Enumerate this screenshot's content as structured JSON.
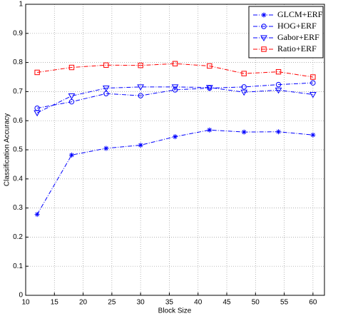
{
  "chart_data": {
    "type": "line",
    "xlabel": "Block Size",
    "ylabel": "Classification Accuracy",
    "x": [
      12,
      18,
      24,
      30,
      36,
      42,
      48,
      54,
      60
    ],
    "series": [
      {
        "name": "GLCM+ERF",
        "color": "#0000ff",
        "marker": "star",
        "values": [
          0.278,
          0.482,
          0.505,
          0.516,
          0.545,
          0.568,
          0.561,
          0.562,
          0.551
        ]
      },
      {
        "name": "HOG+ERF",
        "color": "#0000ff",
        "marker": "circle",
        "values": [
          0.643,
          0.665,
          0.693,
          0.686,
          0.706,
          0.712,
          0.716,
          0.724,
          0.73
        ]
      },
      {
        "name": "Gabor+ERF",
        "color": "#0000ff",
        "marker": "triangle-down",
        "values": [
          0.627,
          0.685,
          0.712,
          0.716,
          0.716,
          0.714,
          0.698,
          0.705,
          0.69
        ]
      },
      {
        "name": "Ratio+ERF",
        "color": "#ff0000",
        "marker": "square",
        "values": [
          0.766,
          0.783,
          0.791,
          0.79,
          0.796,
          0.788,
          0.762,
          0.768,
          0.75
        ]
      }
    ],
    "xlim": [
      10,
      62
    ],
    "xticks": [
      10,
      15,
      20,
      25,
      30,
      35,
      40,
      45,
      50,
      55,
      60
    ],
    "ylim": [
      0,
      1
    ],
    "yticks": [
      0,
      0.1,
      0.2,
      0.3,
      0.4,
      0.5,
      0.6,
      0.7,
      0.8,
      0.9,
      1
    ],
    "grid": true,
    "legend": "top-right"
  }
}
